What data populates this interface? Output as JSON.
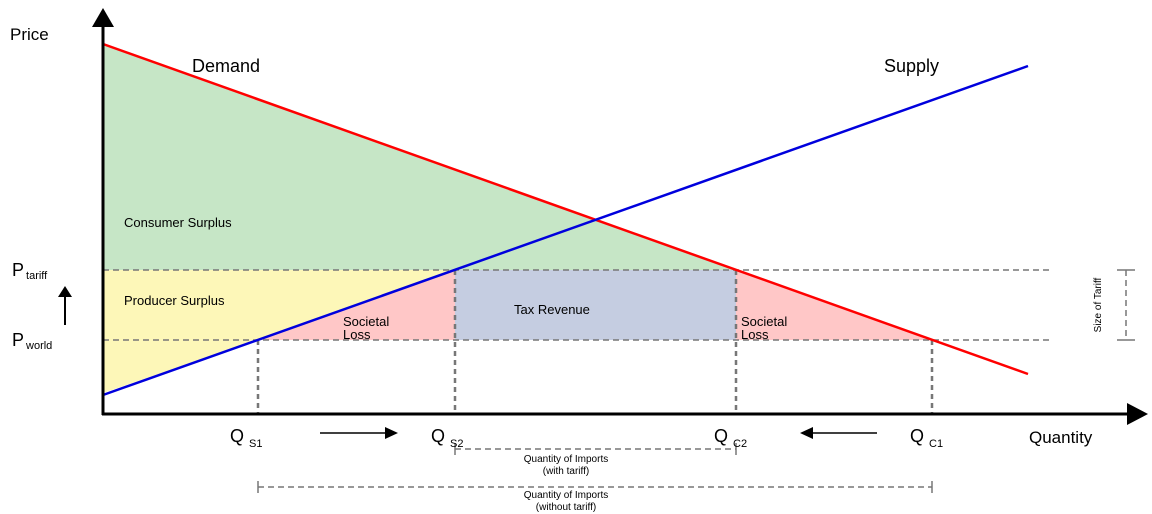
{
  "title": "",
  "axes": {
    "y_label": "Price",
    "x_label": "Quantity"
  },
  "curves": {
    "demand": {
      "label": "Demand",
      "color": "#ff0000"
    },
    "supply": {
      "label": "Supply",
      "color": "#0000dd"
    }
  },
  "regions": {
    "consumer_surplus": {
      "label": "Consumer Surplus",
      "color": "#c6e6c6"
    },
    "producer_surplus": {
      "label": "Producer Surplus",
      "color": "#fdf7b8"
    },
    "tax_revenue": {
      "label": "Tax Revenue",
      "color": "#c5cde1"
    },
    "societal_loss_left": {
      "label_line1": "Societal",
      "label_line2": "Loss",
      "color": "#ffc7c7"
    },
    "societal_loss_right": {
      "label_line1": "Societal",
      "label_line2": "Loss",
      "color": "#ffc7c7"
    }
  },
  "price_levels": {
    "p_tariff": {
      "main": "P",
      "sub": "tariff"
    },
    "p_world": {
      "main": "P",
      "sub": "world"
    }
  },
  "quantities": {
    "qs1": {
      "main": "Q",
      "sub": "S1"
    },
    "qs2": {
      "main": "Q",
      "sub": "S2"
    },
    "qc2": {
      "main": "Q",
      "sub": "C2"
    },
    "qc1": {
      "main": "Q",
      "sub": "C1"
    }
  },
  "annotations": {
    "size_of_tariff": "Size of Tariff",
    "imports_with_tariff_line1": "Quantity of Imports",
    "imports_with_tariff_line2": "(with tariff)",
    "imports_without_tariff_line1": "Quantity of Imports",
    "imports_without_tariff_line2": "(without tariff)"
  }
}
